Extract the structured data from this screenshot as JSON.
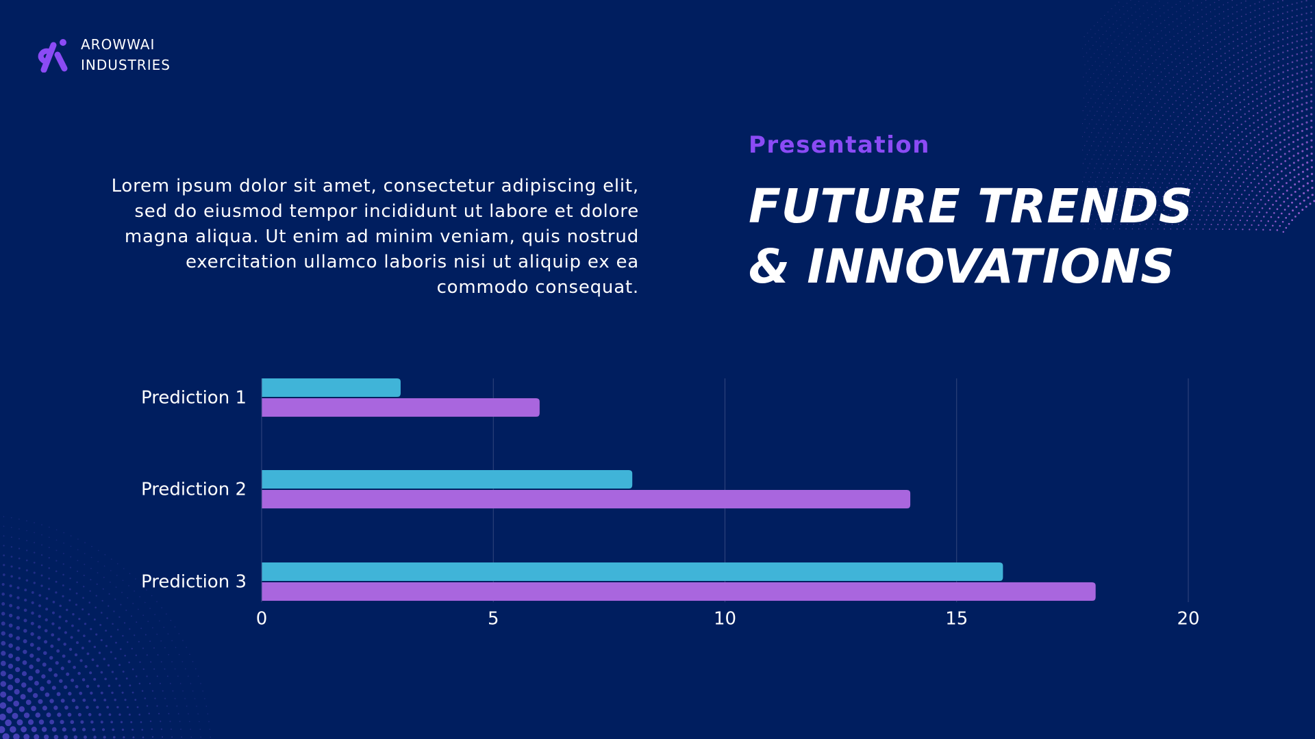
{
  "brand": {
    "name_line1": "AROWWAI",
    "name_line2": "INDUSTRIES"
  },
  "intro": {
    "text": "Lorem ipsum dolor sit amet, consectetur adipiscing elit, sed do eiusmod tempor incididunt ut labore et dolore magna aliqua. Ut enim ad minim veniam, quis nostrud exercitation ullamco laboris nisi ut aliquip ex ea commodo consequat."
  },
  "eyebrow": "Presentation",
  "title": {
    "line1": "FUTURE TRENDS",
    "line2": "& INNOVATIONS"
  },
  "colors": {
    "background": "#001e5f",
    "accent_purple": "#8b4bf5",
    "series_cyan": "#40b4d8",
    "series_violet": "#a966de",
    "gridline": "#33477f"
  },
  "chart_data": {
    "type": "bar",
    "orientation": "horizontal",
    "categories": [
      "Prediction 1",
      "Prediction 2",
      "Prediction 3"
    ],
    "series": [
      {
        "values": [
          3,
          8,
          16
        ],
        "color": "#40b4d8"
      },
      {
        "values": [
          6,
          14,
          18
        ],
        "color": "#a966de"
      }
    ],
    "xlim": [
      0,
      20
    ],
    "xticks": [
      0,
      5,
      10,
      15,
      20
    ],
    "grid": true,
    "legend": false
  }
}
